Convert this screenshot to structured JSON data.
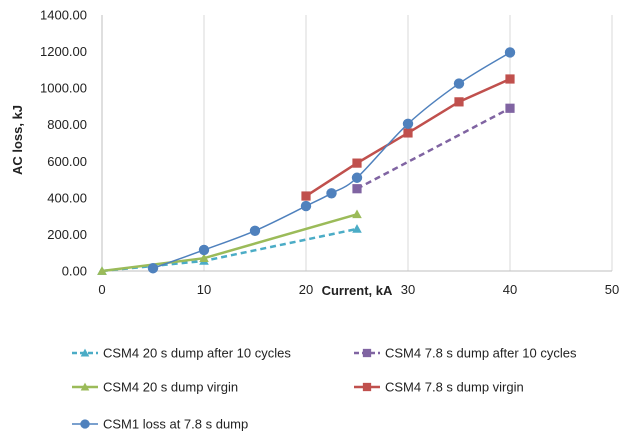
{
  "chart_data": {
    "type": "line",
    "title": "",
    "xlabel": "Current, kA",
    "ylabel": "AC loss, kJ",
    "xlim": [
      0,
      50
    ],
    "ylim": [
      0,
      1400
    ],
    "xticks": [
      "0",
      "10",
      "20",
      "30",
      "40",
      "50"
    ],
    "yticks": [
      "0.00",
      "200.00",
      "400.00",
      "600.00",
      "800.00",
      "1000.00",
      "1200.00",
      "1400.00"
    ],
    "grid": "vertical",
    "legend_position": "bottom",
    "series": [
      {
        "name": "CSM4 20 s dump after 10 cycles",
        "color": "#4BACC6",
        "marker": "triangle",
        "dash": "dashed",
        "smooth": false,
        "x": [
          0,
          10,
          25
        ],
        "y": [
          0,
          55,
          230
        ]
      },
      {
        "name": "CSM4 7.8 s dump after 10 cycles",
        "color": "#8064A2",
        "marker": "square",
        "dash": "dashed",
        "smooth": false,
        "x": [
          25,
          40
        ],
        "y": [
          450,
          890
        ]
      },
      {
        "name": "CSM4 20 s dump virgin",
        "color": "#9BBB59",
        "marker": "triangle",
        "dash": "solid",
        "smooth": false,
        "x": [
          0,
          10,
          25
        ],
        "y": [
          0,
          70,
          310
        ]
      },
      {
        "name": "CSM4 7.8 s dump virgin",
        "color": "#C0504D",
        "marker": "square",
        "dash": "solid",
        "smooth": false,
        "x": [
          20,
          25,
          30,
          35,
          40
        ],
        "y": [
          410,
          590,
          755,
          925,
          1050
        ]
      },
      {
        "name": "CSM1 loss at 7.8 s dump",
        "color": "#4F81BD",
        "marker": "circle",
        "dash": "solid",
        "smooth": true,
        "x": [
          5,
          10,
          15,
          20,
          22.5,
          25,
          30,
          35,
          40
        ],
        "y": [
          15,
          115,
          220,
          355,
          425,
          510,
          805,
          1025,
          1195
        ]
      }
    ]
  }
}
